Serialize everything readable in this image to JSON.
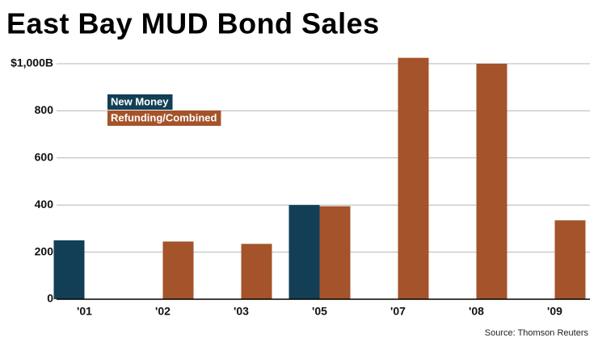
{
  "chart_data": {
    "type": "bar",
    "title": "East Bay MUD Bond Sales",
    "categories": [
      "'01",
      "'02",
      "'03",
      "'05",
      "'07",
      "'08",
      "'09"
    ],
    "series": [
      {
        "name": "New Money",
        "color": "#123f55",
        "values": [
          250,
          null,
          null,
          400,
          null,
          null,
          null
        ]
      },
      {
        "name": "Refunding/Combined",
        "color": "#a4532a",
        "values": [
          null,
          245,
          235,
          395,
          1025,
          1000,
          335
        ]
      }
    ],
    "ylim": [
      0,
      1030
    ],
    "yticks": [
      0,
      200,
      400,
      600,
      800,
      {
        "value": 1000,
        "label": "$1,000B"
      }
    ],
    "grid": true,
    "source": "Source: Thomson Reuters"
  }
}
